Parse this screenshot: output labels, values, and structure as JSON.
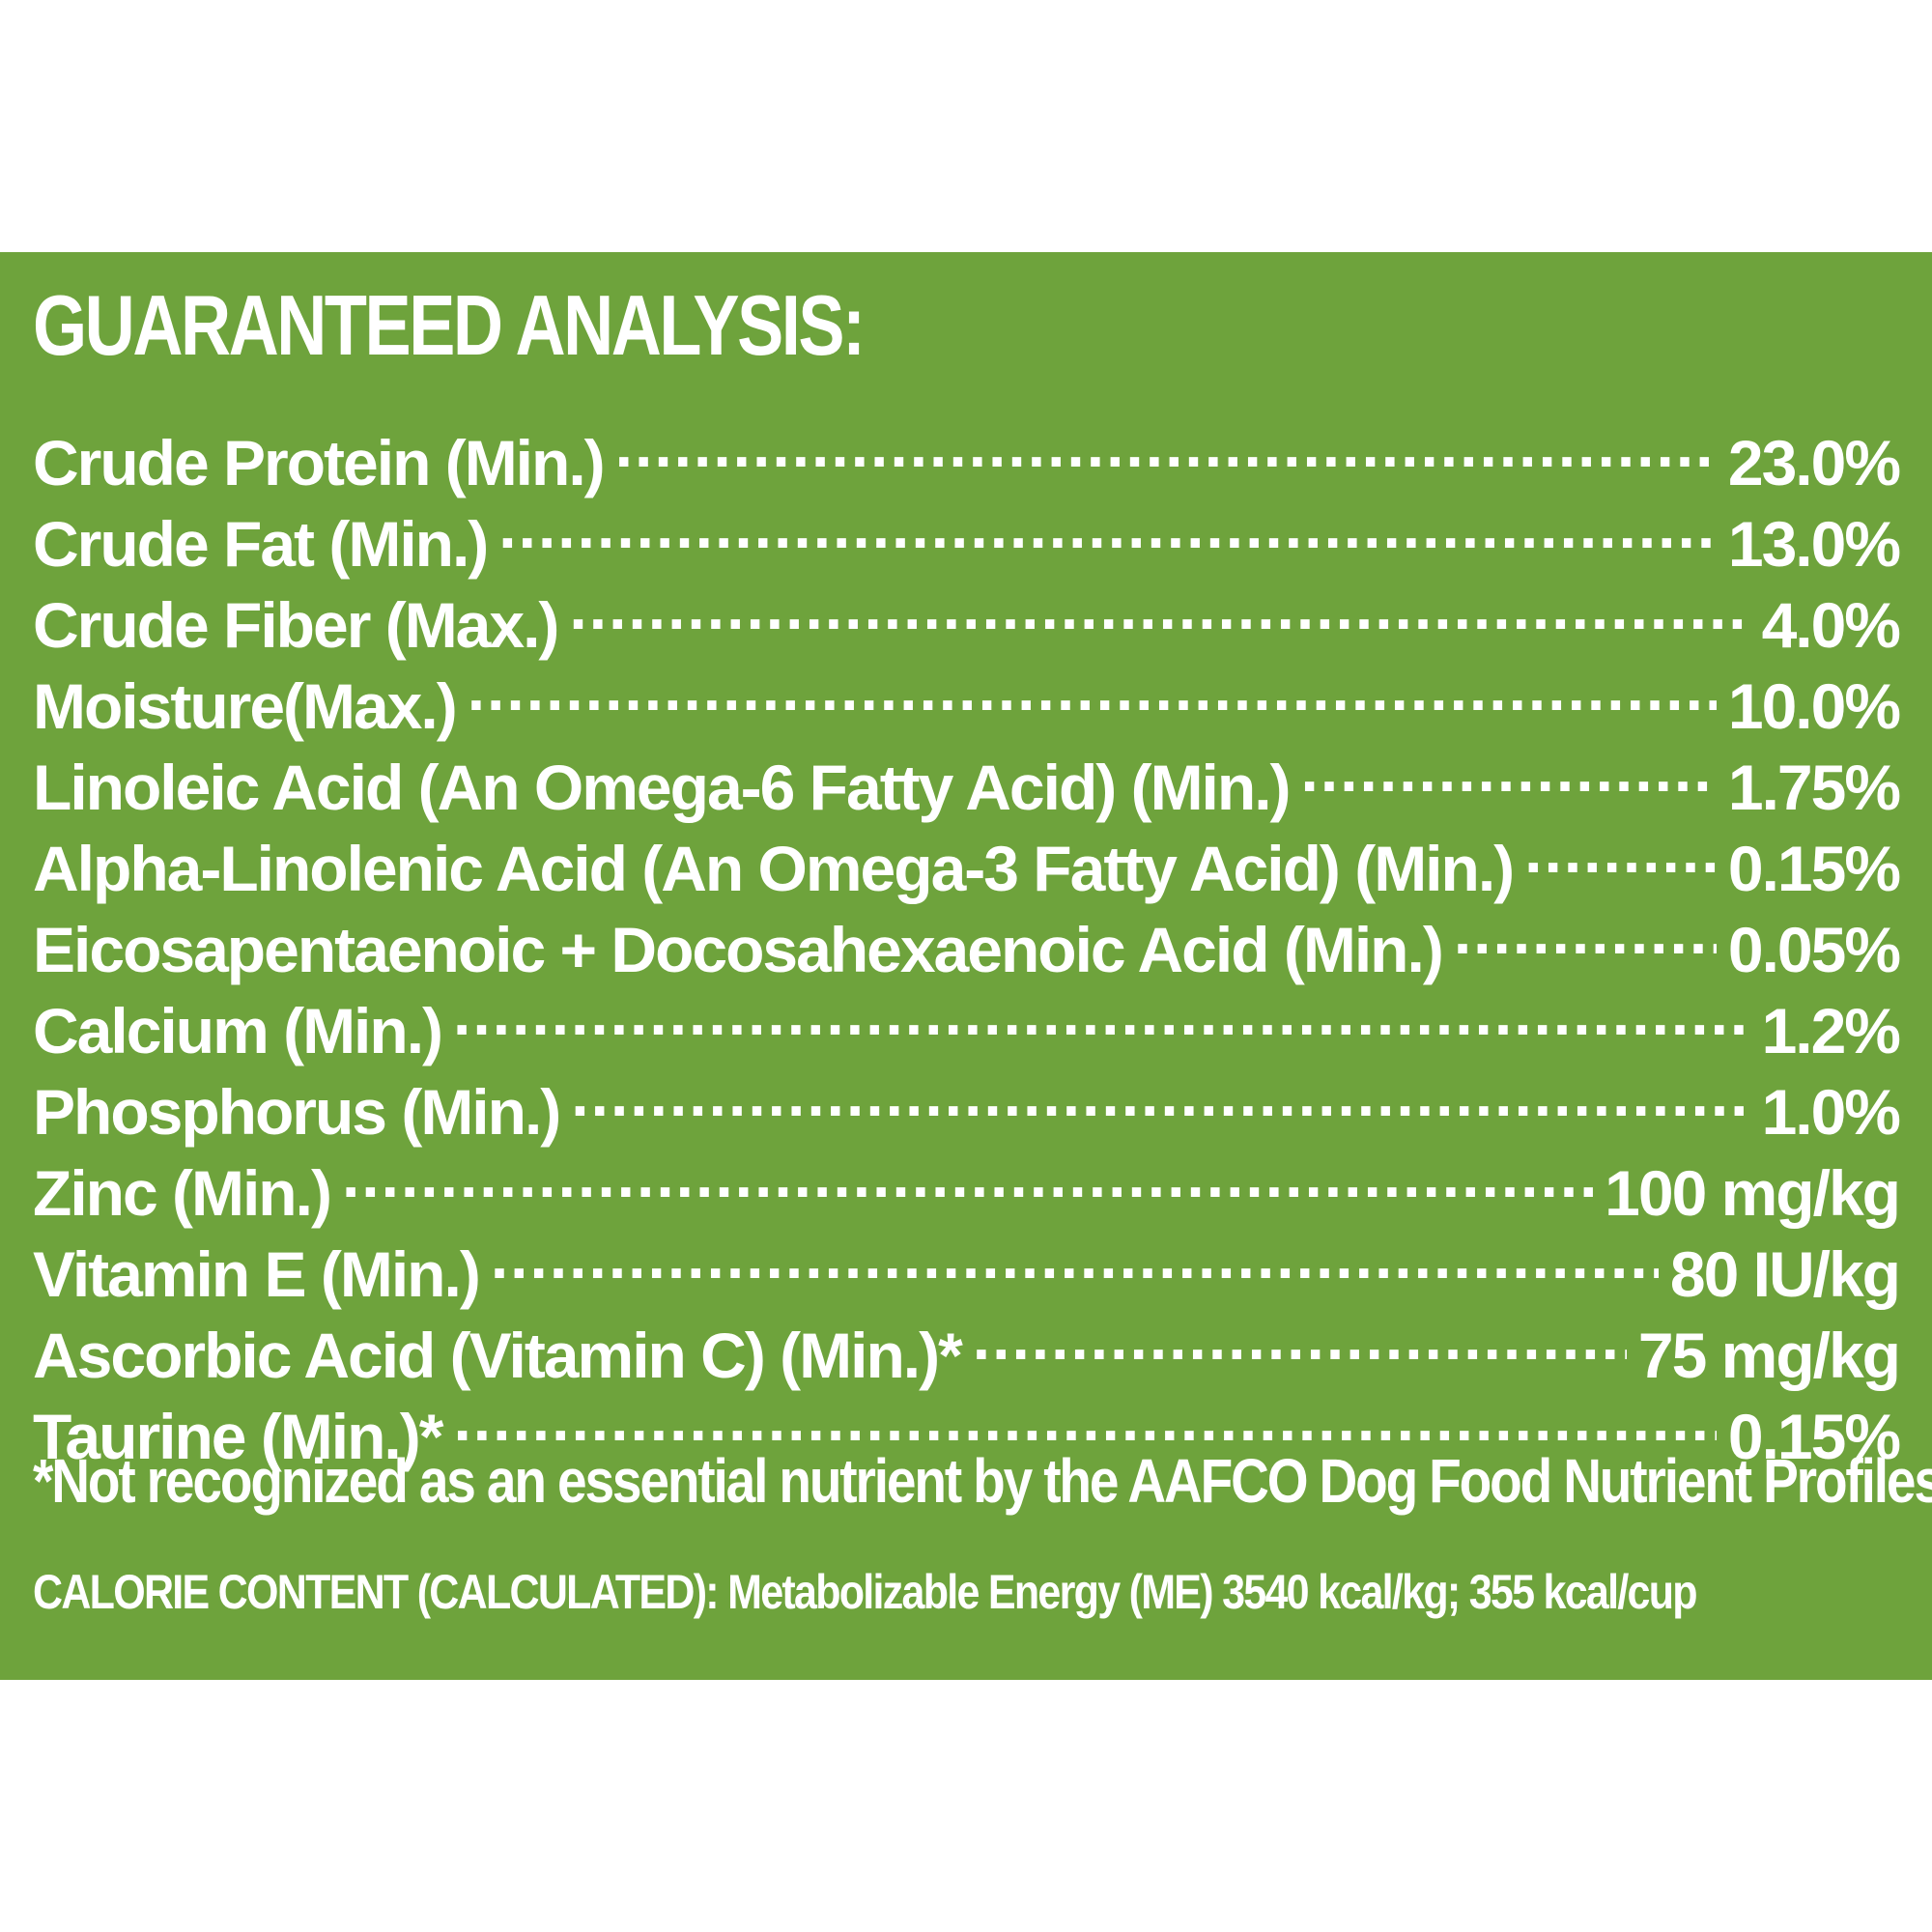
{
  "colors": {
    "panel_background": "#6ea33c",
    "text": "#ffffff",
    "page_background": "#ffffff"
  },
  "title": "GUARANTEED ANALYSIS:",
  "rows": [
    {
      "label": "Crude Protein (Min.)",
      "value": "23.0%"
    },
    {
      "label": "Crude Fat (Min.)",
      "value": "13.0%"
    },
    {
      "label": "Crude Fiber (Max.)",
      "value": "4.0%"
    },
    {
      "label": "Moisture(Max.)",
      "value": "10.0%"
    },
    {
      "label": "Linoleic Acid (An Omega-6 Fatty Acid) (Min.)",
      "value": "1.75%"
    },
    {
      "label": "Alpha-Linolenic Acid (An Omega-3 Fatty Acid) (Min.)",
      "value": "0.15%"
    },
    {
      "label": "Eicosapentaenoic + Docosahexaenoic Acid (Min.)",
      "value": "0.05%"
    },
    {
      "label": "Calcium (Min.)",
      "value": "1.2%"
    },
    {
      "label": "Phosphorus (Min.)",
      "value": "1.0%"
    },
    {
      "label": "Zinc (Min.)",
      "value": "100 mg/kg"
    },
    {
      "label": "Vitamin E (Min.)",
      "value": "80 IU/kg"
    },
    {
      "label": "Ascorbic Acid (Vitamin C) (Min.)*",
      "value": "75 mg/kg"
    },
    {
      "label": "Taurine (Min.)*",
      "value": "0.15%"
    }
  ],
  "footnote": "*Not recognized as an essential nutrient by the AAFCO Dog Food Nutrient Profiles",
  "calorie_content": "CALORIE CONTENT (CALCULATED): Metabolizable Energy (ME) 3540 kcal/kg; 355 kcal/cup"
}
